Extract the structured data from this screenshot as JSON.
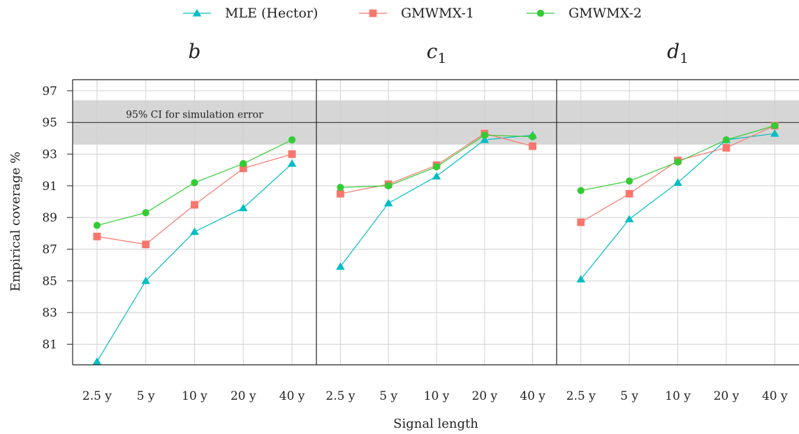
{
  "chart_data": {
    "type": "line",
    "categories": [
      "2.5 y",
      "5 y",
      "10 y",
      "20 y",
      "40 y"
    ],
    "xlabel": "Signal length",
    "ylabel": "Empirical coverage %",
    "ylim": [
      79.7,
      97.7
    ],
    "yticks": [
      81,
      83,
      85,
      87,
      89,
      91,
      93,
      95,
      97
    ],
    "reference_line": 95,
    "band": {
      "lower": 93.6,
      "upper": 96.4,
      "label": "95% CI for simulation error"
    },
    "grid": true,
    "legend_position": "top",
    "series_meta": [
      {
        "name": "MLE (Hector)",
        "color": "#00BEC4",
        "marker": "triangle"
      },
      {
        "name": "GMWMX-1",
        "color": "#F8766D",
        "marker": "square"
      },
      {
        "name": "GMWMX-2",
        "color": "#33CC33",
        "marker": "circle"
      }
    ],
    "panels": [
      {
        "title": "b",
        "title_base": "b",
        "title_sub": "",
        "series": [
          {
            "name": "MLE (Hector)",
            "values": [
              79.9,
              85.0,
              88.1,
              89.6,
              92.4
            ]
          },
          {
            "name": "GMWMX-1",
            "values": [
              87.8,
              87.3,
              89.8,
              92.1,
              93.0
            ]
          },
          {
            "name": "GMWMX-2",
            "values": [
              88.5,
              89.3,
              91.2,
              92.4,
              93.9
            ]
          }
        ]
      },
      {
        "title": "c1",
        "title_base": "c",
        "title_sub": "1",
        "series": [
          {
            "name": "MLE (Hector)",
            "values": [
              85.9,
              89.9,
              91.6,
              93.9,
              94.2
            ]
          },
          {
            "name": "GMWMX-1",
            "values": [
              90.5,
              91.1,
              92.3,
              94.3,
              93.5
            ]
          },
          {
            "name": "GMWMX-2",
            "values": [
              90.9,
              91.0,
              92.2,
              94.2,
              94.1
            ]
          }
        ]
      },
      {
        "title": "d1",
        "title_base": "d",
        "title_sub": "1",
        "series": [
          {
            "name": "MLE (Hector)",
            "values": [
              85.1,
              88.9,
              91.2,
              93.9,
              94.3
            ]
          },
          {
            "name": "GMWMX-1",
            "values": [
              88.7,
              90.5,
              92.6,
              93.4,
              94.8
            ]
          },
          {
            "name": "GMWMX-2",
            "values": [
              90.7,
              91.3,
              92.5,
              93.9,
              94.8
            ]
          }
        ]
      }
    ]
  }
}
